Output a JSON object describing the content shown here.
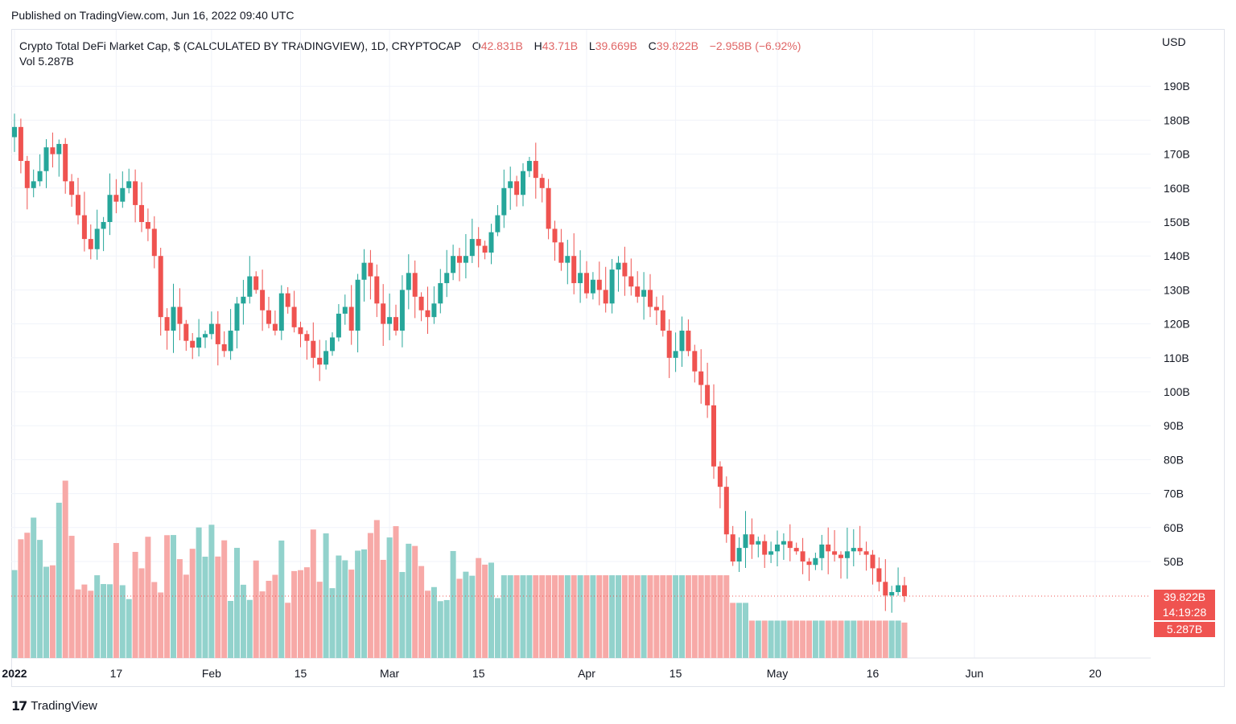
{
  "header": {
    "published": "Published on TradingView.com, Jun 16, 2022 09:40 UTC"
  },
  "legend": {
    "title": "Crypto Total DeFi Market Cap, $ (CALCULATED BY TRADINGVIEW), 1D, CRYPTOCAP",
    "o_label": "O",
    "o_value": "42.831B",
    "h_label": "H",
    "h_value": "43.71B",
    "l_label": "L",
    "l_value": "39.669B",
    "c_label": "C",
    "c_value": "39.822B",
    "change": "−2.958B (−6.92%)",
    "vol_label": "Vol",
    "vol_value": "5.287B"
  },
  "axis": {
    "currency": "USD"
  },
  "price_tags": {
    "last_price": "39.822B",
    "countdown": "14:19:28",
    "last_volume": "5.287B"
  },
  "footer": {
    "brand": "TradingView",
    "logo_glyph": "17"
  },
  "colors": {
    "up": "#26a69a",
    "down": "#ef5350",
    "up_vol": "#92d2cc",
    "down_vol": "#f7a9a7"
  },
  "chart_data": {
    "type": "candlestick",
    "y_ticks": [
      "50B",
      "60B",
      "70B",
      "80B",
      "90B",
      "100B",
      "110B",
      "120B",
      "130B",
      "140B",
      "150B",
      "160B",
      "170B",
      "180B",
      "190B"
    ],
    "y_tick_values": [
      50,
      60,
      70,
      80,
      90,
      100,
      110,
      120,
      130,
      140,
      150,
      160,
      170,
      180,
      190
    ],
    "x_ticks": [
      {
        "label": "2022",
        "day": 0,
        "bold": true
      },
      {
        "label": "17",
        "day": 16
      },
      {
        "label": "Feb",
        "day": 31
      },
      {
        "label": "15",
        "day": 45
      },
      {
        "label": "Mar",
        "day": 59
      },
      {
        "label": "15",
        "day": 73
      },
      {
        "label": "Apr",
        "day": 90
      },
      {
        "label": "15",
        "day": 104
      },
      {
        "label": "May",
        "day": 120
      },
      {
        "label": "16",
        "day": 135
      },
      {
        "label": "Jun",
        "day": 151
      },
      {
        "label": "20",
        "day": 170
      }
    ],
    "close_anchors": [
      [
        0,
        178
      ],
      [
        1,
        168
      ],
      [
        2,
        160
      ],
      [
        3,
        162
      ],
      [
        4,
        165
      ],
      [
        5,
        172
      ],
      [
        6,
        170
      ],
      [
        7,
        173
      ],
      [
        8,
        162
      ],
      [
        9,
        158
      ],
      [
        10,
        152
      ],
      [
        11,
        145
      ],
      [
        12,
        142
      ],
      [
        13,
        148
      ],
      [
        14,
        150
      ],
      [
        15,
        158
      ],
      [
        16,
        156
      ],
      [
        17,
        160
      ],
      [
        18,
        162
      ],
      [
        19,
        155
      ],
      [
        20,
        150
      ],
      [
        21,
        148
      ],
      [
        22,
        140
      ],
      [
        23,
        122
      ],
      [
        24,
        118
      ],
      [
        25,
        125
      ],
      [
        26,
        120
      ],
      [
        27,
        115
      ],
      [
        28,
        113
      ],
      [
        29,
        116
      ],
      [
        30,
        117
      ],
      [
        31,
        120
      ],
      [
        32,
        114
      ],
      [
        33,
        112
      ],
      [
        34,
        118
      ],
      [
        35,
        126
      ],
      [
        36,
        128
      ],
      [
        37,
        134
      ],
      [
        38,
        130
      ],
      [
        39,
        124
      ],
      [
        40,
        120
      ],
      [
        41,
        118
      ],
      [
        42,
        129
      ],
      [
        43,
        125
      ],
      [
        44,
        119
      ],
      [
        45,
        117
      ],
      [
        46,
        115
      ],
      [
        47,
        110
      ],
      [
        48,
        108
      ],
      [
        49,
        112
      ],
      [
        50,
        116
      ],
      [
        51,
        123
      ],
      [
        52,
        125
      ],
      [
        53,
        118
      ],
      [
        54,
        133
      ],
      [
        55,
        138
      ],
      [
        56,
        134
      ],
      [
        57,
        126
      ],
      [
        58,
        120
      ],
      [
        59,
        122
      ],
      [
        60,
        118
      ],
      [
        61,
        130
      ],
      [
        62,
        135
      ],
      [
        63,
        128
      ],
      [
        64,
        124
      ],
      [
        65,
        122
      ],
      [
        66,
        126
      ],
      [
        67,
        132
      ],
      [
        68,
        135
      ],
      [
        69,
        140
      ],
      [
        70,
        138
      ],
      [
        71,
        140
      ],
      [
        72,
        145
      ],
      [
        73,
        143
      ],
      [
        74,
        141
      ],
      [
        75,
        147
      ],
      [
        76,
        152
      ],
      [
        77,
        160
      ],
      [
        78,
        162
      ],
      [
        79,
        158
      ],
      [
        80,
        165
      ],
      [
        81,
        168
      ],
      [
        82,
        163
      ],
      [
        83,
        160
      ],
      [
        84,
        148
      ],
      [
        85,
        144
      ],
      [
        86,
        138
      ],
      [
        87,
        140
      ],
      [
        88,
        132
      ],
      [
        89,
        135
      ],
      [
        90,
        129
      ],
      [
        91,
        133
      ],
      [
        92,
        130
      ],
      [
        93,
        126
      ],
      [
        94,
        136
      ],
      [
        95,
        138
      ],
      [
        96,
        134
      ],
      [
        97,
        131
      ],
      [
        98,
        128
      ],
      [
        99,
        130
      ],
      [
        100,
        125
      ],
      [
        101,
        124
      ],
      [
        102,
        118
      ],
      [
        103,
        110
      ],
      [
        104,
        112
      ],
      [
        105,
        118
      ],
      [
        106,
        112
      ],
      [
        107,
        106
      ],
      [
        108,
        102
      ],
      [
        109,
        96
      ],
      [
        110,
        78
      ],
      [
        111,
        72
      ],
      [
        112,
        58
      ],
      [
        113,
        50
      ],
      [
        114,
        54
      ],
      [
        115,
        58
      ],
      [
        116,
        55
      ],
      [
        117,
        56
      ],
      [
        118,
        52
      ],
      [
        119,
        53
      ],
      [
        120,
        55
      ],
      [
        121,
        56
      ],
      [
        122,
        54
      ],
      [
        123,
        53
      ],
      [
        124,
        50
      ],
      [
        125,
        49
      ],
      [
        126,
        51
      ],
      [
        127,
        55
      ],
      [
        128,
        53
      ],
      [
        129,
        52
      ],
      [
        130,
        51
      ],
      [
        131,
        53
      ],
      [
        132,
        54
      ],
      [
        133,
        53
      ],
      [
        134,
        52
      ],
      [
        135,
        48
      ],
      [
        136,
        44
      ],
      [
        137,
        40
      ],
      [
        138,
        41
      ],
      [
        139,
        43
      ],
      [
        140,
        39.822
      ]
    ],
    "volume_unit": "B",
    "volume_scale_max": 40
  }
}
